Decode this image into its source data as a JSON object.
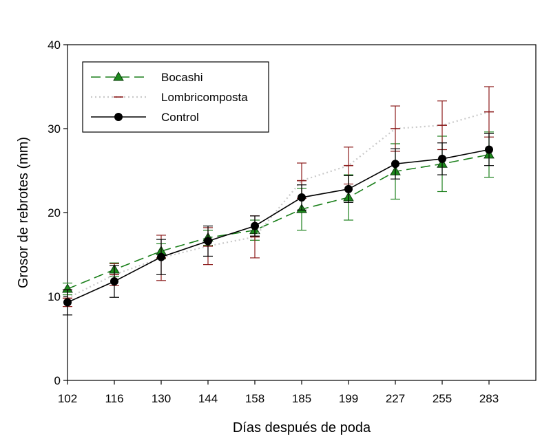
{
  "chart_data": {
    "type": "line",
    "xlabel": "Días después de poda",
    "ylabel": "Grosor de rebrotes (mm)",
    "categories": [
      "102",
      "116",
      "130",
      "144",
      "158",
      "185",
      "199",
      "227",
      "255",
      "283"
    ],
    "ylim": [
      0,
      40
    ],
    "yticks": [
      0,
      10,
      20,
      30,
      40
    ],
    "grid": false,
    "legend_position": "top-left",
    "series": [
      {
        "name": "Bocashi",
        "values": [
          10.9,
          13.2,
          15.4,
          17.0,
          17.9,
          20.4,
          21.8,
          24.9,
          25.8,
          26.9
        ],
        "error": [
          0.7,
          0.8,
          0.9,
          0.9,
          1.2,
          2.5,
          2.7,
          3.3,
          3.3,
          2.7
        ],
        "color": "#1a7f1a",
        "line_style": "dashed",
        "marker": "triangle"
      },
      {
        "name": "Lombricomposta",
        "values": [
          9.8,
          12.6,
          14.6,
          16.0,
          17.1,
          23.8,
          25.6,
          30.0,
          30.4,
          32.0
        ],
        "error": [
          1.0,
          1.3,
          2.7,
          2.2,
          2.5,
          2.1,
          2.2,
          2.7,
          2.9,
          3.0
        ],
        "color": "#8b1a1a",
        "line_style": "dotted",
        "line_color": "#c9c9c9",
        "marker": "dash"
      },
      {
        "name": "Control",
        "values": [
          9.3,
          11.8,
          14.7,
          16.6,
          18.4,
          21.8,
          22.8,
          25.8,
          26.4,
          27.5
        ],
        "error": [
          1.5,
          1.9,
          2.1,
          1.8,
          1.2,
          1.5,
          1.6,
          1.8,
          1.9,
          1.9
        ],
        "color": "#000000",
        "line_style": "solid",
        "marker": "circle"
      }
    ]
  }
}
